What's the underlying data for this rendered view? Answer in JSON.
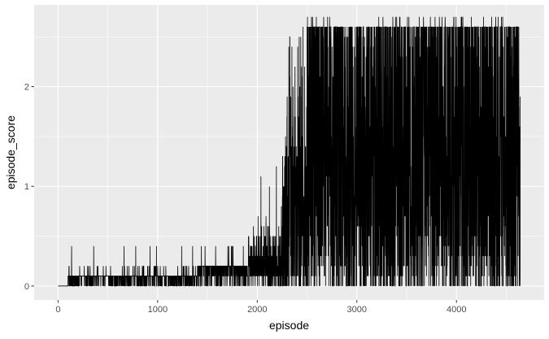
{
  "chart_data": {
    "type": "line",
    "xlabel": "episode",
    "ylabel": "episode_score",
    "xlim": [
      -240,
      4880
    ],
    "ylim": [
      -0.14,
      2.82
    ],
    "x_ticks": [
      0,
      1000,
      2000,
      3000,
      4000
    ],
    "x_tick_labels": [
      "0",
      "1000",
      "2000",
      "3000",
      "4000"
    ],
    "y_ticks": [
      0,
      1,
      2
    ],
    "y_tick_labels": [
      "0",
      "1",
      "2"
    ],
    "grid": true,
    "legend": "none",
    "series": [
      {
        "color": "#000000",
        "x_start": 1,
        "x_end": 4640,
        "score_range": [
          0,
          2.7
        ],
        "segments": [
          {
            "episodes": [
              0,
              100
            ],
            "typical_max": 0.0,
            "peak": 0.0
          },
          {
            "episodes": [
              100,
              1400
            ],
            "typical_max": 0.1,
            "peak": 0.4
          },
          {
            "episodes": [
              1400,
              1900
            ],
            "typical_max": 0.2,
            "peak": 0.5
          },
          {
            "episodes": [
              1900,
              2250
            ],
            "typical_max": 0.5,
            "peak": 1.5
          },
          {
            "episodes": [
              2250,
              2500
            ],
            "typical_max": 1.5,
            "peak": 2.6
          },
          {
            "episodes": [
              2500,
              4640
            ],
            "typical_max": 2.6,
            "peak": 2.7
          }
        ]
      }
    ]
  }
}
